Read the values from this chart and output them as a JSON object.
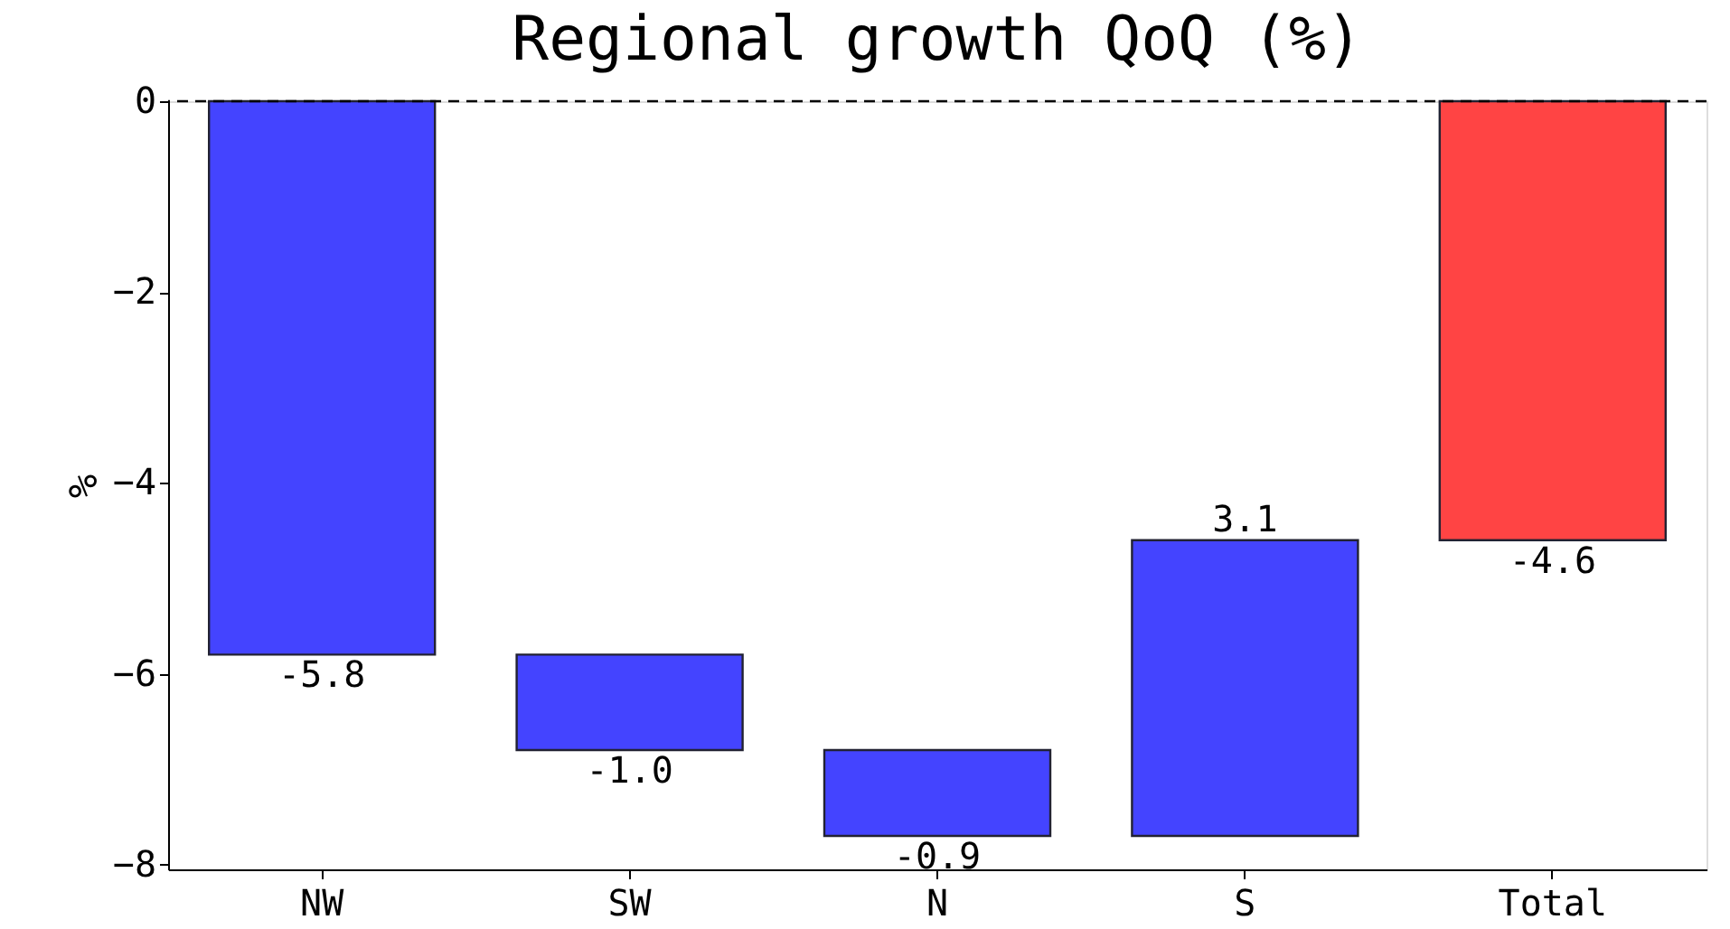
{
  "chart_data": {
    "type": "bar",
    "title": "Regional growth QoQ (%)",
    "ylabel": "%",
    "categories": [
      "NW",
      "SW",
      "N",
      "S",
      "Total"
    ],
    "values": [
      -5.8,
      -1.0,
      -0.9,
      3.1,
      -4.6
    ],
    "base": [
      0,
      -5.8,
      -6.8,
      -7.7,
      0
    ],
    "colors": [
      "#4444ff",
      "#4444ff",
      "#4444ff",
      "#4444ff",
      "#ff4444"
    ],
    "ylim": [
      -8.05,
      0
    ],
    "yticks": [
      0,
      -2,
      -4,
      -6,
      -8
    ],
    "ref_lines": [
      {
        "axis": "y",
        "value": 0,
        "color": "#000000",
        "line_style": "dashed"
      }
    ],
    "value_labels": [
      "-5.8",
      "-1.0",
      "-0.9",
      "3.1",
      "-4.6"
    ],
    "grid": false
  }
}
